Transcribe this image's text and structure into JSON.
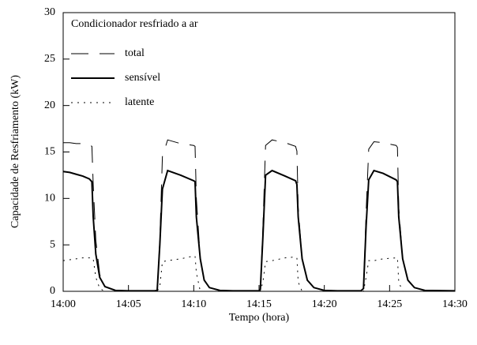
{
  "chart_data": {
    "type": "line",
    "title": "Condicionador resfriado a ar",
    "x_label": "Tempo (hora)",
    "y_label": "Capacidade de Resfriamento (kW)",
    "x": [
      0,
      0.5,
      1,
      1.5,
      2,
      2.2,
      2.3,
      2.5,
      2.8,
      3.2,
      4,
      5,
      7,
      7.2,
      7.4,
      7.6,
      8,
      9,
      10,
      10.1,
      10.2,
      10.5,
      10.8,
      11.2,
      12,
      13,
      15,
      15.1,
      15.3,
      15.5,
      16,
      17,
      17.8,
      17.9,
      18,
      18.3,
      18.7,
      19.2,
      20,
      21,
      22.8,
      23,
      23.2,
      23.4,
      23.8,
      24.5,
      25.5,
      25.6,
      25.7,
      26,
      26.4,
      26.9,
      27.7,
      30
    ],
    "series": [
      {
        "name": "total",
        "color": "#000000",
        "linestyle": "dashed",
        "values": [
          16.0,
          16.0,
          15.9,
          15.9,
          15.8,
          15.6,
          11.5,
          5.5,
          1.8,
          0.5,
          0.1,
          0.05,
          0.05,
          0.1,
          5.5,
          14.5,
          16.3,
          15.9,
          15.7,
          15.6,
          10,
          3.5,
          1.2,
          0.4,
          0.1,
          0.05,
          0.05,
          0.2,
          7,
          15.7,
          16.3,
          16.0,
          15.6,
          15.1,
          9,
          3.5,
          1.2,
          0.4,
          0.1,
          0.05,
          0.05,
          0.3,
          8.5,
          15.3,
          16.1,
          16.0,
          15.7,
          15.5,
          9,
          3.5,
          1.2,
          0.4,
          0.1,
          0.05
        ]
      },
      {
        "name": "sensível",
        "color": "#000000",
        "linestyle": "solid",
        "values": [
          12.9,
          12.8,
          12.6,
          12.4,
          12.1,
          11.8,
          8,
          4,
          1.5,
          0.5,
          0.1,
          0.05,
          0.05,
          0.1,
          5,
          11,
          13.0,
          12.5,
          11.9,
          11.8,
          8,
          3.5,
          1.2,
          0.4,
          0.1,
          0.05,
          0.05,
          0.2,
          6,
          12.5,
          13.0,
          12.4,
          11.9,
          11.5,
          8,
          3.5,
          1.2,
          0.4,
          0.1,
          0.05,
          0.05,
          0.3,
          7,
          12,
          13.0,
          12.7,
          12.0,
          11.8,
          8,
          3.5,
          1.2,
          0.4,
          0.1,
          0.05
        ]
      },
      {
        "name": "latente",
        "color": "#000000",
        "linestyle": "dotted",
        "values": [
          3.3,
          3.4,
          3.5,
          3.6,
          3.6,
          3.6,
          3.5,
          1.5,
          0.3,
          0,
          0,
          0,
          0,
          0,
          0.5,
          3.2,
          3.3,
          3.5,
          3.8,
          3.8,
          2,
          0,
          0,
          0,
          0,
          0,
          0,
          0,
          1,
          3.2,
          3.3,
          3.6,
          3.7,
          3.6,
          1,
          0,
          0,
          0,
          0,
          0,
          0,
          0,
          1.5,
          3.3,
          3.3,
          3.5,
          3.6,
          3.6,
          1,
          0,
          0,
          0,
          0,
          0
        ]
      }
    ],
    "xlim": [
      0,
      30
    ],
    "xticks": [
      {
        "value": 0,
        "label": "14:00"
      },
      {
        "value": 5,
        "label": "14:05"
      },
      {
        "value": 10,
        "label": "14:10"
      },
      {
        "value": 15,
        "label": "14:15"
      },
      {
        "value": 20,
        "label": "14:20"
      },
      {
        "value": 25,
        "label": "14:25"
      },
      {
        "value": 30,
        "label": "14:30"
      }
    ],
    "ylim": [
      0,
      30
    ],
    "yticks": [
      0,
      5,
      10,
      15,
      20,
      25,
      30
    ],
    "grid": false,
    "legend": "upper left"
  }
}
